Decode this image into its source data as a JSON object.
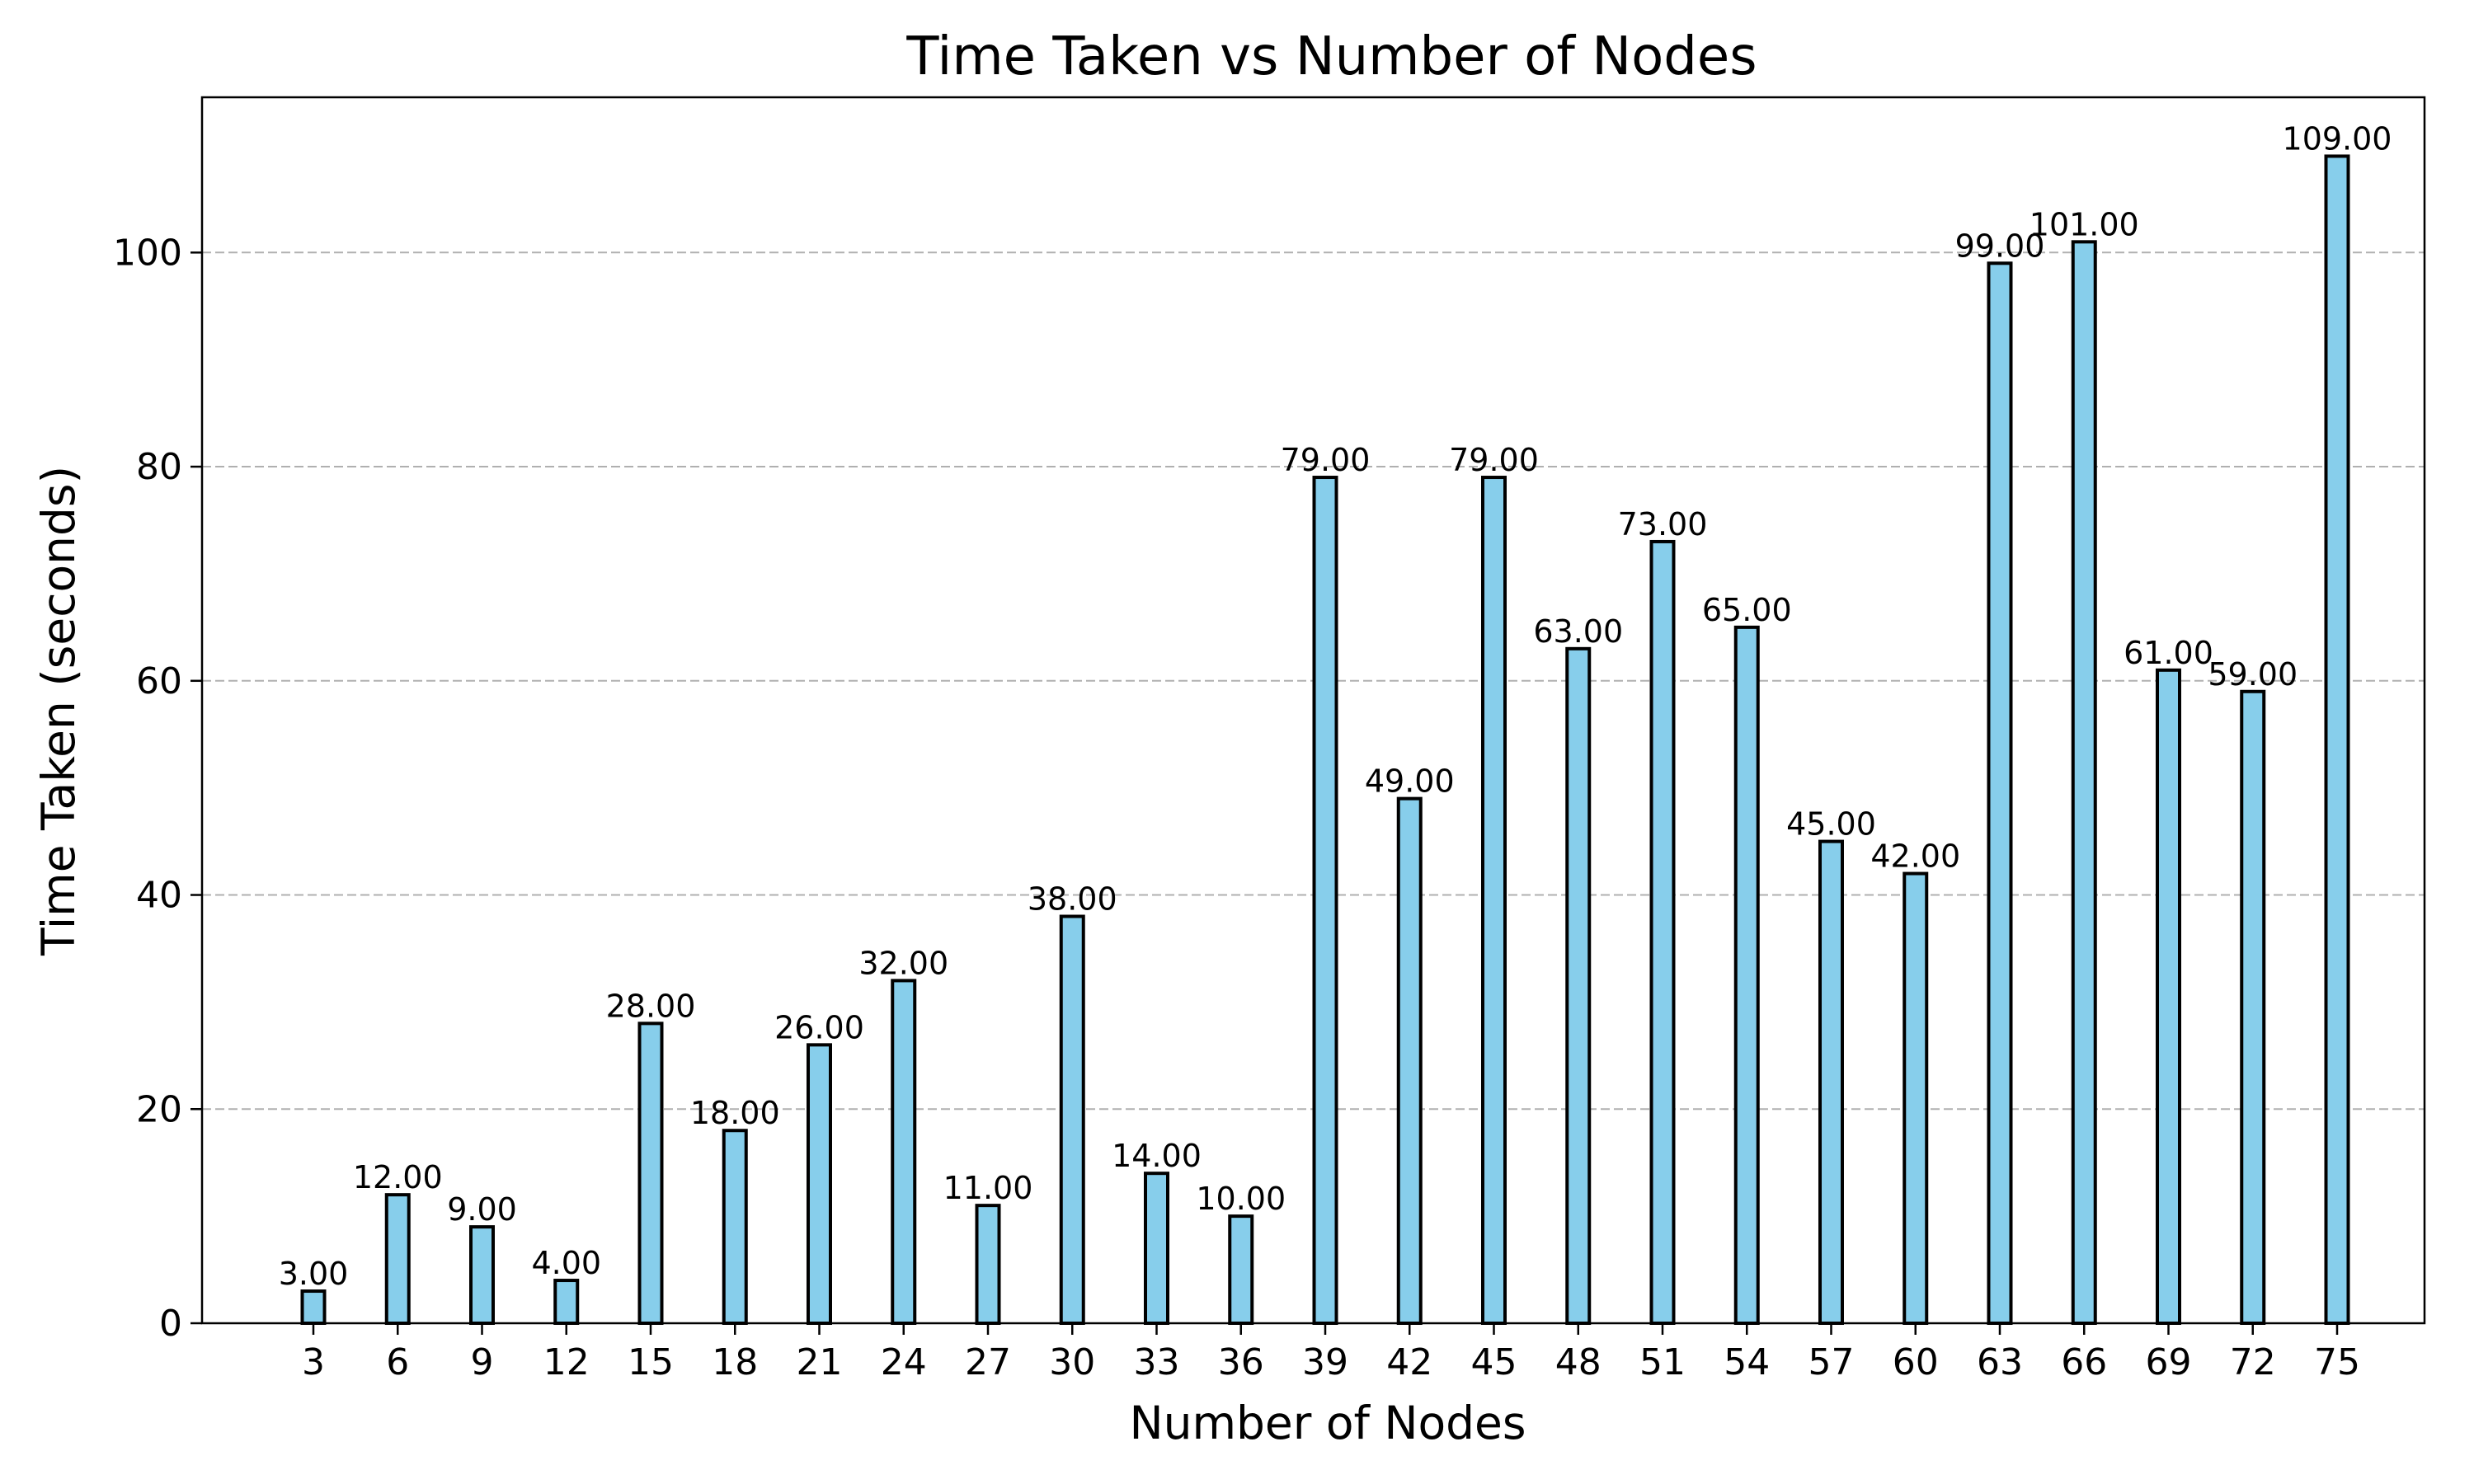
{
  "chart_data": {
    "type": "bar",
    "title": "Time Taken vs Number of Nodes",
    "xlabel": "Number of Nodes",
    "ylabel": "Time Taken (seconds)",
    "categories": [
      "3",
      "6",
      "9",
      "12",
      "15",
      "18",
      "21",
      "24",
      "27",
      "30",
      "33",
      "36",
      "39",
      "42",
      "45",
      "48",
      "51",
      "54",
      "57",
      "60",
      "63",
      "66",
      "69",
      "72",
      "75"
    ],
    "values": [
      3,
      12,
      9,
      4,
      28,
      18,
      26,
      32,
      11,
      38,
      14,
      10,
      79,
      49,
      79,
      63,
      73,
      65,
      45,
      42,
      99,
      101,
      61,
      59,
      109
    ],
    "value_labels": [
      "3.00",
      "12.00",
      "9.00",
      "4.00",
      "28.00",
      "18.00",
      "26.00",
      "32.00",
      "11.00",
      "38.00",
      "14.00",
      "10.00",
      "79.00",
      "49.00",
      "79.00",
      "63.00",
      "73.00",
      "65.00",
      "45.00",
      "42.00",
      "99.00",
      "101.00",
      "61.00",
      "59.00",
      "109.00"
    ],
    "yticks": [
      0,
      20,
      40,
      60,
      80,
      100
    ],
    "ylim": [
      0,
      114.5
    ],
    "grid": "y-dashed",
    "bar_color": "#87ceeb",
    "edge_color": "#000000"
  }
}
